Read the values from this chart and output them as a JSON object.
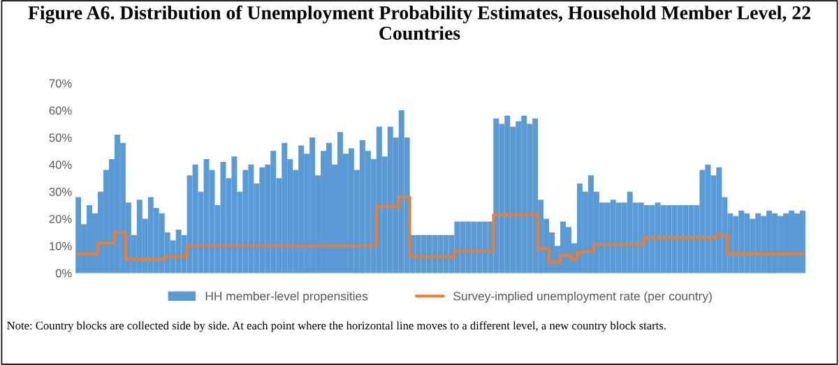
{
  "chart_data": {
    "type": "bar",
    "title": "Figure A6. Distribution of Unemployment Probability Estimates, Household Member Level, 22 Countries",
    "categories": [
      null,
      null,
      null,
      null,
      null,
      null,
      null,
      null,
      null,
      null,
      null,
      null,
      null,
      null,
      null,
      null,
      null,
      null,
      null,
      null,
      null,
      null,
      null,
      null,
      null,
      null,
      null,
      null,
      null,
      null,
      null,
      null,
      null,
      null,
      null,
      null,
      null,
      null,
      null,
      null,
      null,
      null,
      null,
      null,
      null,
      null,
      null,
      null,
      null,
      null,
      null,
      null,
      null,
      null,
      null,
      null,
      null,
      null,
      null,
      null,
      null,
      null,
      null,
      null,
      null,
      null,
      null,
      null,
      null,
      null,
      null,
      null,
      null,
      null,
      null,
      null,
      null,
      null,
      null,
      null,
      null,
      null,
      null,
      null,
      null,
      null,
      null,
      null,
      null,
      null,
      null,
      null,
      null,
      null,
      null,
      null,
      null,
      null,
      null,
      null,
      null,
      null,
      null,
      null,
      null,
      null,
      null,
      null,
      null,
      null,
      null,
      null,
      null,
      null,
      null,
      null,
      null,
      null,
      null,
      null,
      null,
      null,
      null,
      null,
      null,
      null,
      null,
      null,
      null,
      null,
      null
    ],
    "series": [
      {
        "name": "HH member-level propensities",
        "color": "#5b9bd5",
        "values": [
          28,
          18,
          25,
          22,
          30,
          38,
          42,
          51,
          48,
          26,
          14,
          27,
          20,
          28,
          24,
          22,
          15,
          12,
          16,
          14,
          36,
          40,
          30,
          42,
          38,
          25,
          41,
          35,
          43,
          30,
          38,
          40,
          33,
          39,
          40,
          45,
          35,
          48,
          42,
          38,
          47,
          44,
          50,
          36,
          45,
          48,
          40,
          52,
          44,
          46,
          38,
          49,
          45,
          42,
          54,
          43,
          54,
          50,
          60,
          50,
          14,
          14,
          14,
          14,
          14,
          14,
          14,
          14,
          19,
          19,
          19,
          19,
          19,
          19,
          19,
          57,
          55,
          58,
          54,
          56,
          58,
          55,
          57,
          27,
          20,
          15,
          10,
          19,
          17,
          11,
          33,
          30,
          36,
          30,
          26,
          26,
          27,
          26,
          26,
          30,
          26,
          26,
          25,
          25,
          26,
          25,
          25,
          25,
          25,
          25,
          25,
          25,
          38,
          40,
          36,
          39,
          28,
          22,
          21,
          23,
          22,
          20,
          22,
          21,
          23,
          22,
          21,
          22,
          23,
          22,
          23
        ]
      },
      {
        "name": "Survey-implied unemployment rate (per country)",
        "type": "step",
        "color": "#ed7d31",
        "values": [
          7,
          7,
          7,
          7,
          11,
          11,
          11,
          15,
          15,
          5,
          5,
          5,
          5,
          5,
          5,
          5,
          6,
          6,
          6,
          6,
          10,
          10,
          10,
          10,
          10,
          10,
          10,
          10,
          10,
          10,
          10,
          10,
          10,
          10,
          10,
          10,
          10,
          10,
          10,
          10,
          10,
          10,
          10,
          10,
          10,
          10,
          10,
          10,
          10,
          10,
          10,
          10,
          10,
          10,
          24.5,
          24.5,
          24.5,
          24.5,
          28,
          28,
          6,
          6,
          6,
          6,
          6,
          6,
          6,
          6,
          8,
          8,
          8,
          8,
          8,
          8,
          8,
          21.5,
          21.5,
          21.5,
          21.5,
          21.5,
          21.5,
          21.5,
          21.5,
          9,
          9,
          4,
          4,
          6.5,
          6.5,
          5,
          7.5,
          8,
          8,
          10.5,
          10.5,
          10.5,
          10.5,
          10.5,
          10.5,
          10.5,
          10.5,
          10.5,
          13,
          13,
          13,
          13,
          13,
          13,
          13,
          13,
          13,
          13,
          13,
          13,
          13,
          14,
          14,
          7,
          7,
          7,
          7,
          7,
          7,
          7,
          7,
          7,
          7,
          7,
          7,
          7,
          7
        ]
      }
    ],
    "ylim": [
      0,
      70
    ],
    "yticks": [
      {
        "value": 0,
        "label": "0%"
      },
      {
        "value": 10,
        "label": "10%"
      },
      {
        "value": 20,
        "label": "20%"
      },
      {
        "value": 30,
        "label": "30%"
      },
      {
        "value": 40,
        "label": "40%"
      },
      {
        "value": 50,
        "label": "50%"
      },
      {
        "value": 60,
        "label": "60%"
      },
      {
        "value": 70,
        "label": "70%"
      }
    ],
    "grid": false,
    "legend": "bottom",
    "annotations": [
      "Note: Country blocks are collected side by side. At each point where the horizontal line moves to a different level, a new country block starts."
    ]
  }
}
